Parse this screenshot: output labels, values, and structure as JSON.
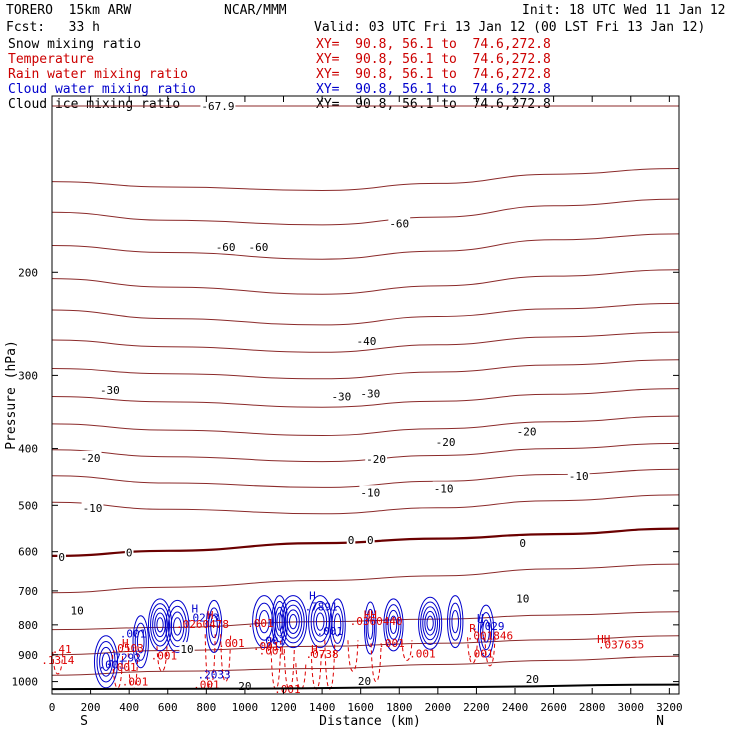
{
  "header": {
    "model": "TORERO  15km ARW",
    "org": "NCAR/MMM",
    "init": "Init: 18 UTC Wed 11 Jan 12",
    "fcst": "Fcst:   33 h",
    "valid": "Valid: 03 UTC Fri 13 Jan 12 (00 LST Fri 13 Jan 12)"
  },
  "fields": [
    {
      "label": "Snow mixing ratio",
      "xy": "XY=  90.8, 56.1 to  74.6,272.8",
      "color": "#000000"
    },
    {
      "label": "Temperature",
      "xy": "XY=  90.8, 56.1 to  74.6,272.8",
      "color": "#cc0000"
    },
    {
      "label": "Rain water mixing ratio",
      "xy": "XY=  90.8, 56.1 to  74.6,272.8",
      "color": "#cc0000"
    },
    {
      "label": "Cloud water mixing ratio",
      "xy": "XY=  90.8, 56.1 to  74.6,272.8",
      "color": "#0000cc"
    },
    {
      "label": "Cloud ice mixing ratio",
      "xy": "XY=  90.8, 56.1 to  74.6,272.8",
      "color": "#000000"
    }
  ],
  "colors": {
    "isotherm": "#8b2a2a",
    "zero_isotherm": "#6b0000",
    "rain": "#dd0000",
    "cloud_water": "#0000cc",
    "ground": "#000000"
  },
  "chart_data": {
    "type": "contour cross-section",
    "xlabel": "Distance (km)",
    "ylabel": "Pressure (hPa)",
    "xlim": [
      0,
      3250
    ],
    "ylim": [
      1050,
      100
    ],
    "y_scale": "log",
    "x_ticks": [
      "0",
      "200",
      "400",
      "600",
      "800",
      "1000",
      "1200",
      "1400",
      "1600",
      "1800",
      "2000",
      "2200",
      "2400",
      "2600",
      "2800",
      "3000",
      "3200"
    ],
    "y_ticks": [
      "200",
      "300",
      "400",
      "500",
      "600",
      "700",
      "800",
      "900",
      "1000"
    ],
    "x_end_labels": {
      "left": "S",
      "right": "N"
    },
    "isotherm_interval_c": 5,
    "isotherms": [
      {
        "t": -65,
        "p": [
          104,
          104,
          104,
          104,
          104,
          104
        ]
      },
      {
        "t": -60,
        "p": [
          140,
          143,
          145,
          141,
          136,
          133
        ]
      },
      {
        "t": -55,
        "p": [
          158,
          163,
          166,
          161,
          154,
          150
        ]
      },
      {
        "t": -50,
        "p": [
          180,
          185,
          190,
          184,
          176,
          172
        ]
      },
      {
        "t": -45,
        "p": [
          205,
          212,
          218,
          211,
          203,
          198
        ]
      },
      {
        "t": -40,
        "p": [
          232,
          240,
          246,
          238,
          231,
          226
        ]
      },
      {
        "t": -35,
        "p": [
          261,
          268,
          274,
          266,
          258,
          253
        ]
      },
      {
        "t": -30,
        "p": [
          292,
          298,
          304,
          296,
          288,
          282
        ]
      },
      {
        "t": -25,
        "p": [
          326,
          333,
          340,
          332,
          323,
          316
        ]
      },
      {
        "t": -20,
        "p": [
          363,
          372,
          380,
          370,
          360,
          352
        ]
      },
      {
        "t": -15,
        "p": [
          402,
          413,
          421,
          411,
          400,
          392
        ]
      },
      {
        "t": -10,
        "p": [
          445,
          458,
          466,
          455,
          443,
          434
        ]
      },
      {
        "t": -5,
        "p": [
          494,
          508,
          517,
          505,
          491,
          480
        ]
      },
      {
        "t": 0,
        "p": [
          610,
          598,
          580,
          570,
          560,
          548
        ]
      },
      {
        "t": 5,
        "p": [
          705,
          690,
          672,
          660,
          642,
          630
        ]
      },
      {
        "t": 10,
        "p": [
          815,
          808,
          790,
          782,
          770,
          760
        ]
      },
      {
        "t": 15,
        "p": [
          900,
          885,
          870,
          860,
          848,
          835
        ]
      },
      {
        "t": 20,
        "p": [
          975,
          960,
          950,
          935,
          920,
          905
        ]
      }
    ],
    "isotherm_x": [
      0,
      600,
      1400,
      2000,
      2600,
      3250
    ],
    "isotherm_labels": [
      {
        "text": "-67.9",
        "x": 860,
        "p": 104
      },
      {
        "text": "-60",
        "x": 900,
        "p": 181
      },
      {
        "text": "-60",
        "x": 1070,
        "p": 181
      },
      {
        "text": "-60",
        "x": 1800,
        "p": 165
      },
      {
        "text": "-40",
        "x": 1630,
        "p": 262
      },
      {
        "text": "-30",
        "x": 300,
        "p": 318
      },
      {
        "text": "-30",
        "x": 1500,
        "p": 326
      },
      {
        "text": "-30",
        "x": 1650,
        "p": 322
      },
      {
        "text": "-20",
        "x": 200,
        "p": 415
      },
      {
        "text": "-20",
        "x": 1680,
        "p": 417
      },
      {
        "text": "-20",
        "x": 2040,
        "p": 390
      },
      {
        "text": "-20",
        "x": 2460,
        "p": 374
      },
      {
        "text": "-10",
        "x": 210,
        "p": 505
      },
      {
        "text": "-10",
        "x": 1650,
        "p": 475
      },
      {
        "text": "-10",
        "x": 2030,
        "p": 468
      },
      {
        "text": "-10",
        "x": 2730,
        "p": 446
      },
      {
        "text": "0",
        "x": 50,
        "p": 613
      },
      {
        "text": "0",
        "x": 400,
        "p": 602
      },
      {
        "text": "0",
        "x": 1550,
        "p": 573
      },
      {
        "text": "0",
        "x": 1650,
        "p": 573
      },
      {
        "text": "0",
        "x": 2440,
        "p": 580
      },
      {
        "text": "10",
        "x": 130,
        "p": 756
      },
      {
        "text": "10",
        "x": 2440,
        "p": 721
      },
      {
        "text": "10",
        "x": 700,
        "p": 880
      },
      {
        "text": "20",
        "x": 1000,
        "p": 1017
      },
      {
        "text": "20",
        "x": 1620,
        "p": 997
      },
      {
        "text": "20",
        "x": 2490,
        "p": 990
      }
    ],
    "ground": {
      "x": [
        0,
        1000,
        2000,
        3250
      ],
      "p": [
        1030,
        1028,
        1022,
        1012
      ]
    },
    "cloud_labels": [
      {
        "text": "H",
        "x": 740,
        "p": 750
      },
      {
        "text": ".0273",
        "x": 780,
        "p": 777
      },
      {
        "text": ".001",
        "x": 420,
        "p": 827
      },
      {
        "text": "H",
        "x": 1350,
        "p": 713
      },
      {
        "text": ".7891",
        "x": 1395,
        "p": 744
      },
      {
        "text": ".001",
        "x": 1140,
        "p": 850
      },
      {
        "text": ".001",
        "x": 1440,
        "p": 820
      },
      {
        "text": "H",
        "x": 2220,
        "p": 778
      },
      {
        "text": ".7029",
        "x": 2260,
        "p": 803
      },
      {
        "text": ".7292",
        "x": 375,
        "p": 910
      },
      {
        "text": ".001",
        "x": 310,
        "p": 935
      },
      {
        "text": ".2033",
        "x": 840,
        "p": 972
      }
    ],
    "rain_labels": [
      {
        "text": "H",
        "x": 820,
        "p": 770
      },
      {
        "text": ".0260478",
        "x": 780,
        "p": 797
      },
      {
        "text": ".001",
        "x": 1080,
        "p": 795
      },
      {
        "text": ".001",
        "x": 930,
        "p": 860
      },
      {
        "text": ".001",
        "x": 1140,
        "p": 885
      },
      {
        "text": "HH",
        "x": 1650,
        "p": 768
      },
      {
        "text": ".0360440",
        "x": 1680,
        "p": 788
      },
      {
        "text": ".001",
        "x": 1760,
        "p": 860
      },
      {
        "text": ".001",
        "x": 1920,
        "p": 895
      },
      {
        "text": "H",
        "x": 380,
        "p": 860
      },
      {
        "text": ".0503",
        "x": 390,
        "p": 877
      },
      {
        "text": ".41",
        "x": 50,
        "p": 880
      },
      {
        "text": ".1314",
        "x": 30,
        "p": 918
      },
      {
        "text": "H",
        "x": 1360,
        "p": 880
      },
      {
        "text": ".0738",
        "x": 1400,
        "p": 897
      },
      {
        "text": ".001",
        "x": 580,
        "p": 902
      },
      {
        "text": ".001",
        "x": 1110,
        "p": 870
      },
      {
        "text": "R",
        "x": 2180,
        "p": 810
      },
      {
        "text": ".001846",
        "x": 2270,
        "p": 835
      },
      {
        "text": ".001",
        "x": 2220,
        "p": 895
      },
      {
        "text": ".001",
        "x": 370,
        "p": 945
      },
      {
        "text": ".001",
        "x": 430,
        "p": 1000
      },
      {
        "text": ".001",
        "x": 800,
        "p": 1012
      },
      {
        "text": ".001",
        "x": 1220,
        "p": 1030
      },
      {
        "text": "HH",
        "x": 2860,
        "p": 845
      },
      {
        "text": ".037635",
        "x": 2950,
        "p": 865
      }
    ],
    "cloud_clusters": [
      {
        "x": 280,
        "p": 925,
        "w": 60,
        "n": 4
      },
      {
        "x": 460,
        "p": 855,
        "w": 40,
        "n": 3
      },
      {
        "x": 560,
        "p": 800,
        "w": 60,
        "n": 5
      },
      {
        "x": 650,
        "p": 805,
        "w": 60,
        "n": 4
      },
      {
        "x": 840,
        "p": 805,
        "w": 40,
        "n": 3
      },
      {
        "x": 1100,
        "p": 790,
        "w": 60,
        "n": 3
      },
      {
        "x": 1180,
        "p": 790,
        "w": 40,
        "n": 4
      },
      {
        "x": 1250,
        "p": 790,
        "w": 70,
        "n": 5
      },
      {
        "x": 1390,
        "p": 790,
        "w": 60,
        "n": 4
      },
      {
        "x": 1480,
        "p": 800,
        "w": 40,
        "n": 3
      },
      {
        "x": 1770,
        "p": 800,
        "w": 50,
        "n": 4
      },
      {
        "x": 1960,
        "p": 795,
        "w": 60,
        "n": 5
      },
      {
        "x": 2090,
        "p": 790,
        "w": 40,
        "n": 3
      },
      {
        "x": 1650,
        "p": 810,
        "w": 30,
        "n": 3
      },
      {
        "x": 2250,
        "p": 820,
        "w": 40,
        "n": 3
      }
    ],
    "rain_streaks": [
      {
        "x": 340,
        "p_top": 900,
        "p_bot": 1025
      },
      {
        "x": 420,
        "p_top": 870,
        "p_bot": 1030
      },
      {
        "x": 570,
        "p_top": 870,
        "p_bot": 960
      },
      {
        "x": 820,
        "p_top": 830,
        "p_bot": 1025
      },
      {
        "x": 900,
        "p_top": 830,
        "p_bot": 1000
      },
      {
        "x": 1160,
        "p_top": 840,
        "p_bot": 1030
      },
      {
        "x": 1230,
        "p_top": 880,
        "p_bot": 1030
      },
      {
        "x": 1290,
        "p_top": 930,
        "p_bot": 1030
      },
      {
        "x": 1370,
        "p_top": 890,
        "p_bot": 1030
      },
      {
        "x": 1440,
        "p_top": 850,
        "p_bot": 1030
      },
      {
        "x": 1560,
        "p_top": 850,
        "p_bot": 960
      },
      {
        "x": 1680,
        "p_top": 860,
        "p_bot": 1000
      },
      {
        "x": 1840,
        "p_top": 850,
        "p_bot": 920
      },
      {
        "x": 2180,
        "p_top": 840,
        "p_bot": 930
      },
      {
        "x": 2270,
        "p_top": 840,
        "p_bot": 940
      },
      {
        "x": 30,
        "p_top": 890,
        "p_bot": 970
      }
    ]
  }
}
